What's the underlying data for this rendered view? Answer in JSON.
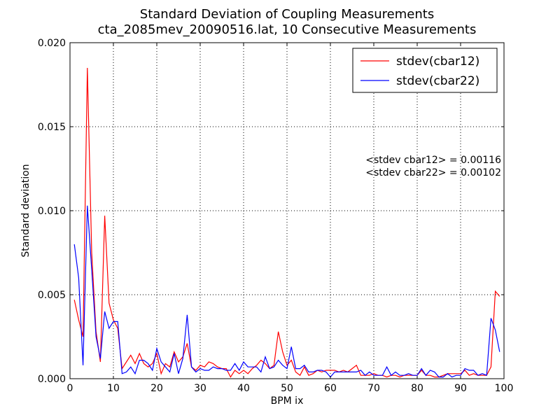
{
  "chart_data": {
    "type": "line",
    "title": "Standard Deviation of Coupling Measurements",
    "subtitle": "cta_2085mev_20090516.lat, 10 Consecutive Measurements",
    "xlabel": "BPM ix",
    "ylabel": "Standard deviation",
    "xlim": [
      0,
      100
    ],
    "ylim": [
      0,
      0.02
    ],
    "xticks": [
      0,
      10,
      20,
      30,
      40,
      50,
      60,
      70,
      80,
      90,
      100
    ],
    "xtick_labels": [
      "0",
      "10",
      "20",
      "30",
      "40",
      "50",
      "60",
      "70",
      "80",
      "90",
      "100"
    ],
    "yticks": [
      0,
      0.005,
      0.01,
      0.015,
      0.02
    ],
    "ytick_labels": [
      "0.000",
      "0.005",
      "0.010",
      "0.015",
      "0.020"
    ],
    "grid": true,
    "legend_position": "top-right",
    "annotations": [
      "<stdev cbar12> = 0.00116",
      "<stdev cbar22> = 0.00102"
    ],
    "series": [
      {
        "name": "stdev(cbar12)",
        "color": "#ff0000",
        "x": [
          1,
          2,
          3,
          4,
          5,
          6,
          7,
          8,
          9,
          10,
          11,
          12,
          13,
          14,
          15,
          16,
          17,
          18,
          19,
          20,
          21,
          22,
          23,
          24,
          25,
          26,
          27,
          28,
          29,
          30,
          31,
          32,
          33,
          34,
          35,
          36,
          37,
          38,
          39,
          40,
          41,
          42,
          43,
          44,
          45,
          46,
          47,
          48,
          49,
          50,
          51,
          52,
          53,
          54,
          55,
          56,
          57,
          58,
          59,
          60,
          61,
          62,
          63,
          64,
          65,
          66,
          67,
          68,
          69,
          70,
          71,
          72,
          73,
          74,
          75,
          76,
          77,
          78,
          79,
          80,
          81,
          82,
          83,
          84,
          85,
          86,
          87,
          88,
          89,
          90,
          91,
          92,
          93,
          94,
          95,
          96,
          97,
          98,
          99
        ],
        "values": [
          0.0047,
          0.0035,
          0.0025,
          0.0185,
          0.0075,
          0.0028,
          0.001,
          0.0097,
          0.0045,
          0.0035,
          0.003,
          0.0006,
          0.001,
          0.0014,
          0.0009,
          0.0015,
          0.0009,
          0.0007,
          0.0009,
          0.0015,
          0.0003,
          0.0009,
          0.0007,
          0.0016,
          0.001,
          0.0013,
          0.0021,
          0.0007,
          0.0005,
          0.0008,
          0.0007,
          0.001,
          0.0009,
          0.0007,
          0.0006,
          0.0006,
          0.0001,
          0.0005,
          0.0003,
          0.0005,
          0.0003,
          0.0006,
          0.0008,
          0.0011,
          0.0009,
          0.0006,
          0.0008,
          0.0028,
          0.0016,
          0.0008,
          0.0011,
          0.0004,
          0.0002,
          0.0007,
          0.0002,
          0.0003,
          0.0005,
          0.0004,
          0.0005,
          0.0005,
          0.0005,
          0.0004,
          0.0005,
          0.0004,
          0.0006,
          0.0008,
          0.0002,
          0.0002,
          0.0002,
          0.0003,
          0.0002,
          0.0002,
          0.0001,
          0.0002,
          0.0002,
          0.0001,
          0.0002,
          0.0002,
          0.0002,
          0.0002,
          0.0005,
          0.0002,
          0.0002,
          0.0001,
          0.0001,
          0.0002,
          0.0003,
          0.0003,
          0.0003,
          0.0003,
          0.0005,
          0.0002,
          0.0003,
          0.0002,
          0.0002,
          0.0002,
          0.0007,
          0.0052,
          0.0049
        ]
      },
      {
        "name": "stdev(cbar22)",
        "color": "#0000ff",
        "x": [
          1,
          2,
          3,
          4,
          5,
          6,
          7,
          8,
          9,
          10,
          11,
          12,
          13,
          14,
          15,
          16,
          17,
          18,
          19,
          20,
          21,
          22,
          23,
          24,
          25,
          26,
          27,
          28,
          29,
          30,
          31,
          32,
          33,
          34,
          35,
          36,
          37,
          38,
          39,
          40,
          41,
          42,
          43,
          44,
          45,
          46,
          47,
          48,
          49,
          50,
          51,
          52,
          53,
          54,
          55,
          56,
          57,
          58,
          59,
          60,
          61,
          62,
          63,
          64,
          65,
          66,
          67,
          68,
          69,
          70,
          71,
          72,
          73,
          74,
          75,
          76,
          77,
          78,
          79,
          80,
          81,
          82,
          83,
          84,
          85,
          86,
          87,
          88,
          89,
          90,
          91,
          92,
          93,
          94,
          95,
          96,
          97,
          98,
          99
        ],
        "values": [
          0.008,
          0.006,
          0.0008,
          0.0103,
          0.0065,
          0.0025,
          0.0012,
          0.004,
          0.003,
          0.0034,
          0.0034,
          0.0003,
          0.0004,
          0.0007,
          0.0003,
          0.0011,
          0.0011,
          0.0009,
          0.0005,
          0.0018,
          0.001,
          0.0007,
          0.0004,
          0.0015,
          0.0003,
          0.0012,
          0.0038,
          0.0007,
          0.0004,
          0.0006,
          0.0005,
          0.0005,
          0.0007,
          0.0006,
          0.0006,
          0.0005,
          0.0005,
          0.0009,
          0.0005,
          0.001,
          0.0007,
          0.0007,
          0.0007,
          0.0004,
          0.0013,
          0.0006,
          0.0007,
          0.0011,
          0.0008,
          0.0006,
          0.0019,
          0.0006,
          0.0006,
          0.0008,
          0.0004,
          0.0004,
          0.0005,
          0.0005,
          0.0004,
          0.0001,
          0.0004,
          0.0004,
          0.0004,
          0.0004,
          0.0004,
          0.0004,
          0.0005,
          0.0002,
          0.0004,
          0.0002,
          0.0002,
          0.0002,
          0.0007,
          0.0002,
          0.0004,
          0.0002,
          0.0002,
          0.0003,
          0.0002,
          0.0002,
          0.0006,
          0.0002,
          0.0005,
          0.0004,
          0.0001,
          0.0001,
          0.0003,
          0.0001,
          0.0002,
          0.0002,
          0.0006,
          0.0005,
          0.0005,
          0.0002,
          0.0003,
          0.0002,
          0.0036,
          0.0029,
          0.0016
        ]
      }
    ]
  }
}
